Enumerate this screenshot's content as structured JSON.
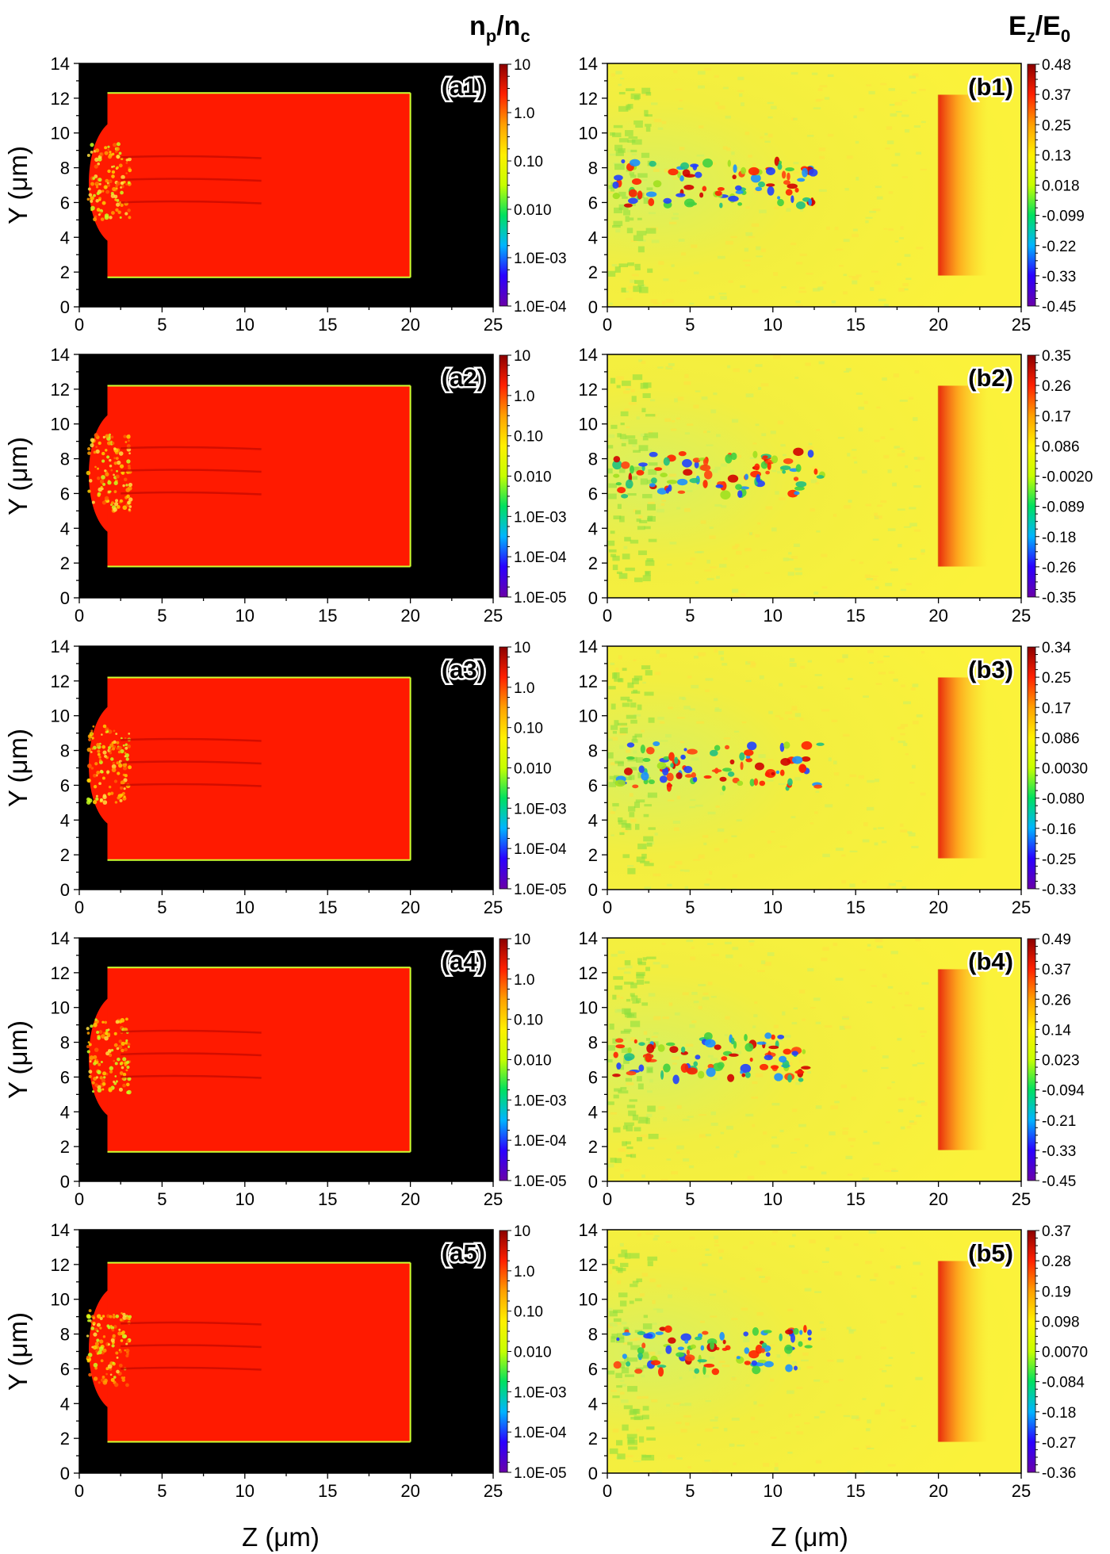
{
  "titles": {
    "left": {
      "main": "n",
      "sub1": "p",
      "sep": "/n",
      "sub2": "c"
    },
    "right": {
      "main": "E",
      "sub1": "z",
      "sep": "/E",
      "sub2": "0"
    }
  },
  "axis_labels": {
    "y": "Y (μm)",
    "x_left": "Z (μm)",
    "x_right": "Z (μm)"
  },
  "colors": {
    "density_bg": "#000000",
    "density_fill": "#ff1a00",
    "field_bg": "#f8ef3c",
    "colormap": [
      "#6a00a8",
      "#2a00ff",
      "#00b4ff",
      "#00e060",
      "#c6ff00",
      "#fff000",
      "#ffa000",
      "#ff2000",
      "#8c0000"
    ]
  },
  "chart_data": [
    {
      "type": "heatmap",
      "panel": "(a1)",
      "quantity": "n_p/n_c",
      "x_ticks": [
        0,
        5,
        10,
        15,
        20,
        25
      ],
      "y_ticks": [
        0,
        2,
        4,
        6,
        8,
        10,
        12,
        14
      ],
      "xlim": [
        0,
        25
      ],
      "ylim": [
        0,
        14
      ],
      "colorbar_labels": [
        "10",
        "1.0",
        "0.10",
        "0.010",
        "1.0E-03",
        "1.0E-04"
      ],
      "colorbar_scale": "log",
      "target_region": {
        "z": [
          1.7,
          20.0
        ],
        "y": [
          1.7,
          12.3
        ]
      }
    },
    {
      "type": "heatmap",
      "panel": "(b1)",
      "quantity": "E_z/E_0",
      "x_ticks": [
        0,
        5,
        10,
        15,
        20,
        25
      ],
      "y_ticks": [
        0,
        2,
        4,
        6,
        8,
        10,
        12,
        14
      ],
      "xlim": [
        0,
        25
      ],
      "ylim": [
        0,
        14
      ],
      "colorbar_labels": [
        "0.48",
        "0.37",
        "0.25",
        "0.13",
        "0.018",
        "-0.099",
        "-0.22",
        "-0.33",
        "-0.45"
      ],
      "colorbar_scale": "linear"
    },
    {
      "type": "heatmap",
      "panel": "(a2)",
      "quantity": "n_p/n_c",
      "x_ticks": [
        0,
        5,
        10,
        15,
        20,
        25
      ],
      "y_ticks": [
        0,
        2,
        4,
        6,
        8,
        10,
        12,
        14
      ],
      "xlim": [
        0,
        25
      ],
      "ylim": [
        0,
        14
      ],
      "colorbar_labels": [
        "10",
        "1.0",
        "0.10",
        "0.010",
        "1.0E-03",
        "1.0E-04",
        "1.0E-05"
      ],
      "colorbar_scale": "log",
      "target_region": {
        "z": [
          1.7,
          20.0
        ],
        "y": [
          1.8,
          12.2
        ]
      }
    },
    {
      "type": "heatmap",
      "panel": "(b2)",
      "quantity": "E_z/E_0",
      "x_ticks": [
        0,
        5,
        10,
        15,
        20,
        25
      ],
      "y_ticks": [
        0,
        2,
        4,
        6,
        8,
        10,
        12,
        14
      ],
      "xlim": [
        0,
        25
      ],
      "ylim": [
        0,
        14
      ],
      "colorbar_labels": [
        "0.35",
        "0.26",
        "0.17",
        "0.086",
        "-0.0020",
        "-0.089",
        "-0.18",
        "-0.26",
        "-0.35"
      ],
      "colorbar_scale": "linear"
    },
    {
      "type": "heatmap",
      "panel": "(a3)",
      "quantity": "n_p/n_c",
      "x_ticks": [
        0,
        5,
        10,
        15,
        20,
        25
      ],
      "y_ticks": [
        0,
        2,
        4,
        6,
        8,
        10,
        12,
        14
      ],
      "xlim": [
        0,
        25
      ],
      "ylim": [
        0,
        14
      ],
      "colorbar_labels": [
        "10",
        "1.0",
        "0.10",
        "0.010",
        "1.0E-03",
        "1.0E-04",
        "1.0E-05"
      ],
      "colorbar_scale": "log",
      "target_region": {
        "z": [
          1.7,
          20.0
        ],
        "y": [
          1.7,
          12.2
        ]
      }
    },
    {
      "type": "heatmap",
      "panel": "(b3)",
      "quantity": "E_z/E_0",
      "x_ticks": [
        0,
        5,
        10,
        15,
        20,
        25
      ],
      "y_ticks": [
        0,
        2,
        4,
        6,
        8,
        10,
        12,
        14
      ],
      "xlim": [
        0,
        25
      ],
      "ylim": [
        0,
        14
      ],
      "colorbar_labels": [
        "0.34",
        "0.25",
        "0.17",
        "0.086",
        "0.0030",
        "-0.080",
        "-0.16",
        "-0.25",
        "-0.33"
      ],
      "colorbar_scale": "linear"
    },
    {
      "type": "heatmap",
      "panel": "(a4)",
      "quantity": "n_p/n_c",
      "x_ticks": [
        0,
        5,
        10,
        15,
        20,
        25
      ],
      "y_ticks": [
        0,
        2,
        4,
        6,
        8,
        10,
        12,
        14
      ],
      "xlim": [
        0,
        25
      ],
      "ylim": [
        0,
        14
      ],
      "colorbar_labels": [
        "10",
        "1.0",
        "0.10",
        "0.010",
        "1.0E-03",
        "1.0E-04",
        "1.0E-05"
      ],
      "colorbar_scale": "log",
      "target_region": {
        "z": [
          1.7,
          20.0
        ],
        "y": [
          1.7,
          12.3
        ]
      }
    },
    {
      "type": "heatmap",
      "panel": "(b4)",
      "quantity": "E_z/E_0",
      "x_ticks": [
        0,
        5,
        10,
        15,
        20,
        25
      ],
      "y_ticks": [
        0,
        2,
        4,
        6,
        8,
        10,
        12,
        14
      ],
      "xlim": [
        0,
        25
      ],
      "ylim": [
        0,
        14
      ],
      "colorbar_labels": [
        "0.49",
        "0.37",
        "0.26",
        "0.14",
        "0.023",
        "-0.094",
        "-0.21",
        "-0.33",
        "-0.45"
      ],
      "colorbar_scale": "linear"
    },
    {
      "type": "heatmap",
      "panel": "(a5)",
      "quantity": "n_p/n_c",
      "x_ticks": [
        0,
        5,
        10,
        15,
        20,
        25
      ],
      "y_ticks": [
        0,
        2,
        4,
        6,
        8,
        10,
        12,
        14
      ],
      "xlim": [
        0,
        25
      ],
      "ylim": [
        0,
        14
      ],
      "colorbar_labels": [
        "10",
        "1.0",
        "0.10",
        "0.010",
        "1.0E-03",
        "1.0E-04",
        "1.0E-05"
      ],
      "colorbar_scale": "log",
      "target_region": {
        "z": [
          1.7,
          20.0
        ],
        "y": [
          1.8,
          12.1
        ]
      }
    },
    {
      "type": "heatmap",
      "panel": "(b5)",
      "quantity": "E_z/E_0",
      "x_ticks": [
        0,
        5,
        10,
        15,
        20,
        25
      ],
      "y_ticks": [
        0,
        2,
        4,
        6,
        8,
        10,
        12,
        14
      ],
      "xlim": [
        0,
        25
      ],
      "ylim": [
        0,
        14
      ],
      "colorbar_labels": [
        "0.37",
        "0.28",
        "0.19",
        "0.098",
        "0.0070",
        "-0.084",
        "-0.18",
        "-0.27",
        "-0.36"
      ],
      "colorbar_scale": "linear"
    }
  ]
}
